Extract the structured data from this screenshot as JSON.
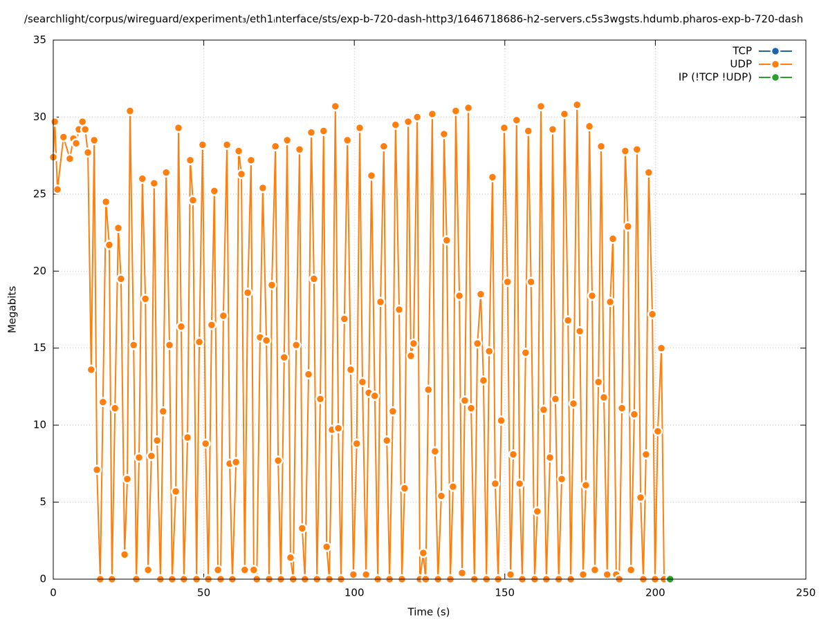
{
  "chart_data": {
    "type": "line",
    "title": "/searchlight/corpus/wireguard/experiment₃/eth1ᵢnterface/sts/exp-b-720-dash-http3/1646718686-h2-servers.c5s3wgsts.hdumb.pharos-exp-b-720-dash",
    "x_label": "Time (s)",
    "y_label": "Megabits",
    "xlim": [
      0,
      250
    ],
    "xticks": [
      0,
      50,
      100,
      150,
      200,
      250
    ],
    "ylim": [
      0,
      35
    ],
    "yticks": [
      0,
      5,
      10,
      15,
      20,
      25,
      30,
      35
    ],
    "grid": true,
    "legend": "top-right",
    "series": [
      {
        "name": "TCP",
        "color": "#1f63b0",
        "x": [],
        "values": []
      },
      {
        "name": "UDP",
        "color": "#ff7f0e",
        "x": [
          0,
          0.5,
          1.4,
          3.4,
          5.5,
          6.7,
          7.6,
          8.5,
          9.7,
          10.6,
          11.5,
          12.6,
          13.6,
          14.5,
          15.6,
          16.5,
          17.5,
          18.6,
          19.5,
          20.5,
          21.6,
          22.5,
          23.7,
          24.6,
          25.5,
          26.7,
          27.6,
          28.5,
          29.6,
          30.6,
          31.5,
          32.6,
          33.5,
          34.5,
          35.6,
          36.5,
          37.5,
          38.6,
          39.5,
          40.7,
          41.6,
          42.5,
          43.4,
          44.6,
          45.5,
          46.4,
          47.6,
          48.5,
          49.6,
          50.6,
          51.5,
          52.6,
          53.5,
          54.7,
          55.6,
          56.5,
          57.7,
          58.6,
          59.5,
          60.7,
          61.6,
          62.5,
          63.6,
          64.6,
          65.7,
          66.6,
          67.6,
          68.7,
          69.6,
          70.8,
          71.7,
          72.6,
          73.8,
          74.7,
          75.6,
          76.7,
          77.7,
          78.8,
          79.7,
          80.7,
          81.8,
          82.7,
          83.6,
          84.8,
          85.7,
          86.6,
          87.6,
          88.7,
          89.8,
          90.8,
          91.7,
          92.6,
          93.7,
          94.7,
          95.6,
          96.7,
          97.7,
          98.8,
          99.7,
          100.8,
          101.8,
          102.7,
          103.9,
          104.8,
          105.7,
          106.8,
          107.8,
          108.7,
          109.8,
          110.8,
          111.7,
          112.8,
          113.7,
          114.9,
          115.8,
          116.7,
          117.9,
          118.8,
          119.7,
          120.9,
          121.8,
          122.9,
          123.7,
          124.6,
          125.9,
          126.8,
          127.8,
          128.9,
          129.8,
          130.7,
          131.9,
          132.8,
          133.7,
          134.9,
          135.8,
          136.7,
          137.9,
          138.8,
          139.9,
          140.9,
          142.0,
          142.9,
          143.9,
          144.8,
          145.9,
          146.8,
          147.8,
          148.8,
          149.8,
          150.9,
          151.9,
          152.8,
          153.9,
          154.9,
          155.8,
          156.9,
          157.8,
          158.7,
          159.9,
          160.8,
          162.0,
          162.9,
          163.8,
          165.0,
          165.9,
          166.8,
          167.9,
          168.9,
          169.8,
          171.0,
          171.9,
          172.8,
          174.0,
          174.9,
          176.0,
          176.9,
          178.1,
          179.0,
          179.9,
          181.1,
          182.0,
          182.9,
          184.0,
          185.0,
          185.9,
          187.0,
          188.0,
          188.9,
          190.0,
          190.9,
          191.9,
          193.0,
          193.9,
          195.1,
          196.0,
          196.9,
          197.8,
          199.0,
          199.9,
          200.8,
          202.0,
          202.9
        ],
        "values": [
          27.4,
          29.7,
          25.3,
          28.7,
          27.3,
          28.6,
          28.3,
          29.2,
          29.7,
          29.2,
          27.7,
          13.6,
          28.5,
          7.1,
          0,
          11.5,
          24.5,
          21.7,
          0,
          11.1,
          22.8,
          19.5,
          1.6,
          6.5,
          30.4,
          15.2,
          0,
          7.9,
          26.0,
          18.2,
          0.6,
          8.0,
          25.7,
          9.0,
          0,
          10.9,
          26.4,
          15.2,
          0,
          5.7,
          29.3,
          16.4,
          0,
          9.2,
          27.2,
          24.6,
          0,
          15.4,
          28.2,
          8.8,
          0,
          16.5,
          25.2,
          0.6,
          0,
          17.1,
          28.2,
          7.5,
          0,
          7.6,
          27.8,
          26.3,
          0.6,
          18.6,
          27.2,
          0.6,
          0,
          15.7,
          25.4,
          15.5,
          0,
          19.1,
          28.1,
          7.7,
          0,
          14.4,
          28.5,
          1.4,
          0,
          15.2,
          27.9,
          3.3,
          0,
          13.3,
          29.0,
          19.5,
          0,
          11.7,
          29.1,
          2.1,
          0,
          9.7,
          30.7,
          9.8,
          0,
          16.9,
          28.5,
          13.6,
          0.3,
          8.8,
          29.3,
          12.8,
          0.3,
          12.1,
          26.2,
          11.9,
          0,
          18.0,
          28.1,
          9.0,
          0,
          10.9,
          29.5,
          17.5,
          0,
          5.9,
          29.7,
          14.5,
          15.3,
          30.0,
          0,
          1.7,
          0,
          12.3,
          30.2,
          8.3,
          0,
          5.4,
          28.9,
          22.0,
          0,
          6.0,
          30.4,
          18.4,
          0.4,
          11.6,
          30.6,
          11.1,
          0,
          15.3,
          18.5,
          12.9,
          0,
          14.8,
          26.1,
          6.2,
          0,
          10.3,
          29.3,
          19.3,
          0.3,
          8.1,
          29.8,
          6.2,
          0,
          14.7,
          29.1,
          19.3,
          0,
          4.4,
          30.7,
          11.0,
          0,
          7.9,
          29.2,
          11.7,
          0,
          6.5,
          30.2,
          16.8,
          0,
          11.4,
          30.8,
          16.1,
          0.3,
          6.1,
          29.4,
          18.4,
          0.6,
          12.8,
          28.1,
          11.8,
          0.3,
          18.0,
          22.1,
          0.3,
          0,
          11.1,
          27.8,
          22.9,
          0.6,
          10.7,
          27.9,
          5.3,
          0,
          8.1,
          26.4,
          17.2,
          0,
          9.6,
          15.0,
          0
        ]
      },
      {
        "name": "IP (!TCP  !UDP)",
        "color": "#2ca02c",
        "x": [
          204.9
        ],
        "values": [
          0
        ]
      }
    ]
  }
}
